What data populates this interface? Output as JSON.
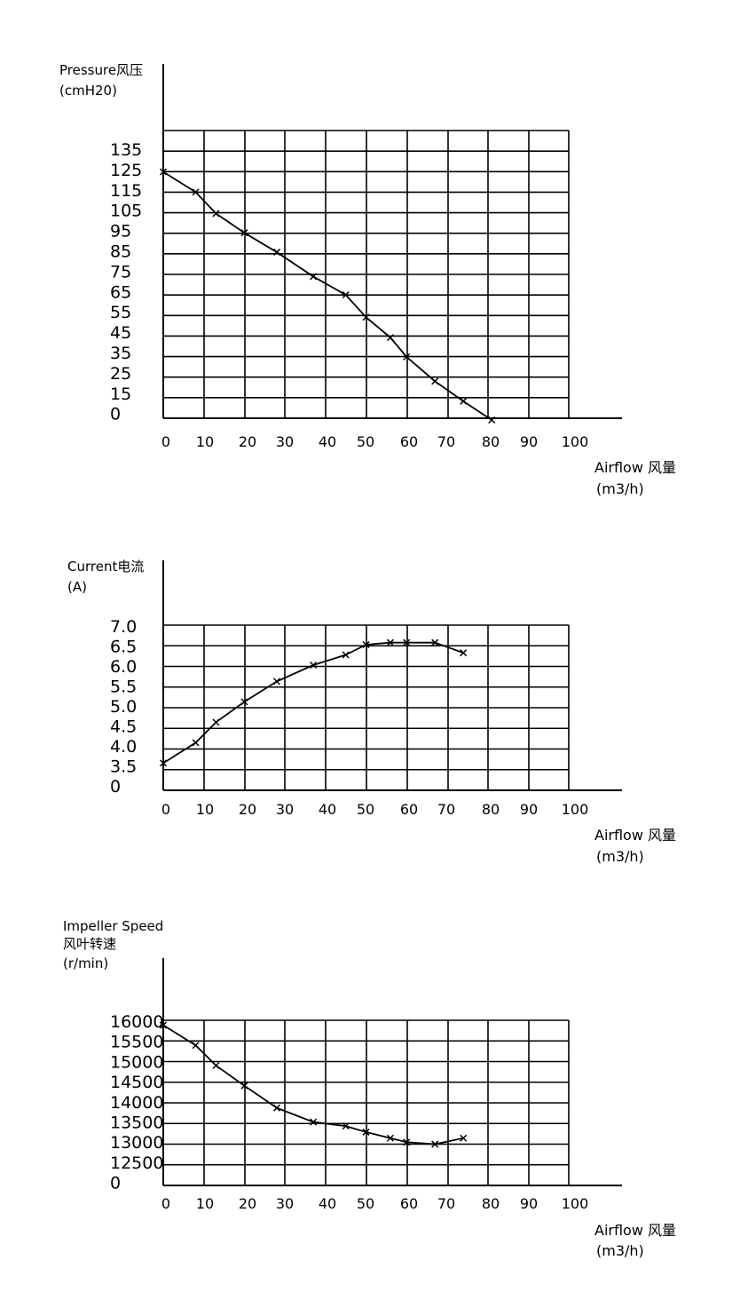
{
  "chart_data": [
    {
      "type": "line",
      "ylabel_lines": [
        "Pressure风压",
        "(cmH20)"
      ],
      "xlabel_lines": [
        "Airflow 风量",
        "(m3/h)"
      ],
      "x_ticks": [
        "0",
        "10",
        "20",
        "30",
        "40",
        "50",
        "60",
        "70",
        "80",
        "90",
        "100"
      ],
      "y_ticks": [
        "135",
        "125",
        "115",
        "105",
        "95",
        "85",
        "75",
        "65",
        "55",
        "45",
        "35",
        "25",
        "15",
        "0"
      ],
      "xlim": [
        0,
        100
      ],
      "grid": true,
      "series": [
        {
          "x": [
            0,
            8,
            13,
            20,
            28,
            37,
            45,
            50,
            56,
            60,
            67,
            74,
            81
          ],
          "y": [
            125,
            115,
            104.5,
            95,
            85.5,
            73.5,
            64.5,
            53.5,
            43.5,
            34,
            22,
            11.5,
            0
          ]
        }
      ]
    },
    {
      "type": "line",
      "ylabel_lines": [
        "Current电流",
        "(A)"
      ],
      "xlabel_lines": [
        "Airflow 风量",
        "(m3/h)"
      ],
      "x_ticks": [
        "0",
        "10",
        "20",
        "30",
        "40",
        "50",
        "60",
        "70",
        "80",
        "90",
        "100"
      ],
      "y_ticks": [
        "7.0",
        "6.5",
        "6.0",
        "5.5",
        "5.0",
        "4.5",
        "4.0",
        "3.5",
        "0"
      ],
      "xlim": [
        0,
        100
      ],
      "grid": true,
      "series": [
        {
          "x": [
            0,
            8,
            13,
            20,
            28,
            37,
            45,
            50,
            56,
            60,
            67,
            74
          ],
          "y": [
            3.6,
            4.1,
            4.6,
            5.1,
            5.6,
            6.0,
            6.25,
            6.5,
            6.55,
            6.55,
            6.55,
            6.3
          ]
        }
      ]
    },
    {
      "type": "line",
      "ylabel_lines": [
        "Impeller Speed",
        "风叶转速",
        "(r/min)"
      ],
      "xlabel_lines": [
        "Airflow 风量",
        "(m3/h)"
      ],
      "x_ticks": [
        "0",
        "10",
        "20",
        "30",
        "40",
        "50",
        "60",
        "70",
        "80",
        "90",
        "100"
      ],
      "y_ticks": [
        "16000",
        "15500",
        "15000",
        "14500",
        "14000",
        "13500",
        "13000",
        "12500",
        "0"
      ],
      "xlim": [
        0,
        100
      ],
      "grid": true,
      "series": [
        {
          "x": [
            0,
            8,
            13,
            20,
            28,
            37,
            45,
            50,
            56,
            60,
            67,
            74
          ],
          "y": [
            15900,
            15400,
            14900,
            14400,
            13850,
            13500,
            13400,
            13250,
            13100,
            13000,
            12950,
            13100
          ]
        }
      ]
    }
  ]
}
